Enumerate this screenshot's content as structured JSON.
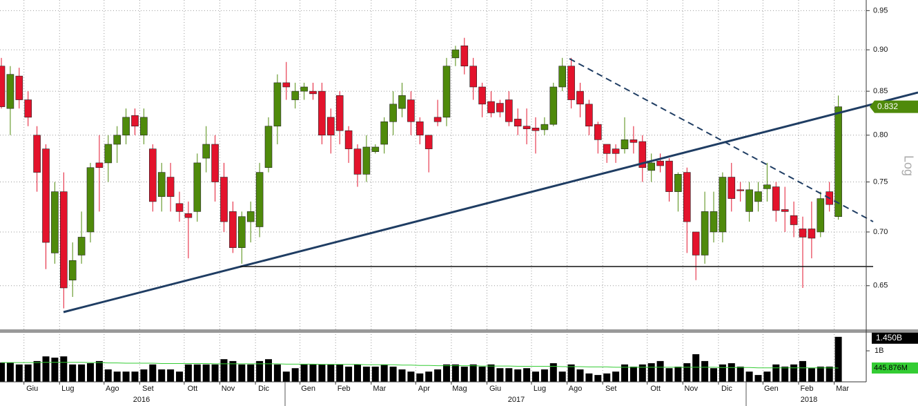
{
  "chart_data": {
    "type": "candlestick",
    "log": true,
    "grid": true,
    "axis_label": "Log",
    "colors": {
      "up": "#4f8a0b",
      "down": "#e3132c",
      "volume": "#000000",
      "ma": "#33cc33"
    },
    "categories": [
      null,
      null,
      null,
      "Giu",
      null,
      null,
      null,
      "Lug",
      null,
      null,
      null,
      null,
      "Ago",
      null,
      null,
      null,
      "Set",
      null,
      null,
      null,
      null,
      "Ott",
      null,
      null,
      null,
      "Nov",
      null,
      null,
      null,
      "Dic",
      null,
      null,
      null,
      null,
      "Gen",
      null,
      null,
      null,
      "Feb",
      null,
      null,
      null,
      "Mar",
      null,
      null,
      null,
      null,
      "Apr",
      null,
      null,
      null,
      "Mag",
      null,
      null,
      null,
      "Giu",
      null,
      null,
      null,
      null,
      "Lug",
      null,
      null,
      null,
      "Ago",
      null,
      null,
      null,
      "Set",
      null,
      null,
      null,
      null,
      "Ott",
      null,
      null,
      null,
      "Nov",
      null,
      null,
      null,
      "Dic",
      null,
      null,
      null,
      null,
      "Gen",
      null,
      null,
      null,
      "Feb",
      null,
      null,
      null,
      "Mar"
    ],
    "years": [
      "2016",
      "2017",
      "2018"
    ],
    "open": [
      0.88,
      0.83,
      0.868,
      0.84,
      0.8,
      0.785,
      0.68,
      0.74,
      0.655,
      0.678,
      0.7,
      0.77,
      0.77,
      0.79,
      0.8,
      0.822,
      0.8,
      0.785,
      0.735,
      0.755,
      0.728,
      0.718,
      0.72,
      0.775,
      0.79,
      0.755,
      0.72,
      0.685,
      0.71,
      0.705,
      0.765,
      0.81,
      0.86,
      0.84,
      0.85,
      0.85,
      0.85,
      0.82,
      0.845,
      0.805,
      0.785,
      0.758,
      0.782,
      0.79,
      0.815,
      0.83,
      0.84,
      0.815,
      0.8,
      0.82,
      0.82,
      0.89,
      0.905,
      0.88,
      0.855,
      0.838,
      0.836,
      0.84,
      0.818,
      0.81,
      0.808,
      0.806,
      0.812,
      0.855,
      0.88,
      0.85,
      0.835,
      0.812,
      0.79,
      0.785,
      0.785,
      0.795,
      0.793,
      0.762,
      0.772,
      0.772,
      0.74,
      0.76,
      0.7,
      0.678,
      0.7,
      0.7,
      0.755,
      0.742,
      0.72,
      0.73,
      0.743,
      0.745,
      0.722,
      0.716,
      0.703,
      0.703,
      0.7,
      0.74,
      0.715
    ],
    "high": [
      0.89,
      0.88,
      0.878,
      0.85,
      0.81,
      0.79,
      0.75,
      0.76,
      0.69,
      0.72,
      0.77,
      0.8,
      0.8,
      0.81,
      0.83,
      0.83,
      0.83,
      0.79,
      0.77,
      0.77,
      0.74,
      0.73,
      0.78,
      0.81,
      0.8,
      0.77,
      0.73,
      0.72,
      0.73,
      0.77,
      0.82,
      0.87,
      0.885,
      0.86,
      0.86,
      0.86,
      0.86,
      0.83,
      0.85,
      0.81,
      0.79,
      0.8,
      0.79,
      0.82,
      0.85,
      0.86,
      0.85,
      0.82,
      0.8,
      0.84,
      0.89,
      0.905,
      0.915,
      0.89,
      0.86,
      0.85,
      0.84,
      0.85,
      0.83,
      0.83,
      0.82,
      0.82,
      0.86,
      0.89,
      0.89,
      0.86,
      0.84,
      0.815,
      0.79,
      0.79,
      0.82,
      0.81,
      0.8,
      0.78,
      0.78,
      0.775,
      0.76,
      0.765,
      0.7,
      0.74,
      0.74,
      0.76,
      0.77,
      0.75,
      0.75,
      0.75,
      0.77,
      0.75,
      0.745,
      0.73,
      0.715,
      0.73,
      0.74,
      0.75,
      0.845
    ],
    "low": [
      0.83,
      0.8,
      0.83,
      0.81,
      0.74,
      0.665,
      0.67,
      0.63,
      0.64,
      0.67,
      0.69,
      0.72,
      0.75,
      0.77,
      0.79,
      0.8,
      0.79,
      0.72,
      0.72,
      0.72,
      0.71,
      0.675,
      0.71,
      0.76,
      0.73,
      0.7,
      0.68,
      0.67,
      0.69,
      0.695,
      0.76,
      0.79,
      0.84,
      0.83,
      0.84,
      0.84,
      0.79,
      0.78,
      0.79,
      0.77,
      0.745,
      0.75,
      0.78,
      0.78,
      0.8,
      0.82,
      0.8,
      0.79,
      0.76,
      0.81,
      0.81,
      0.88,
      0.87,
      0.84,
      0.82,
      0.82,
      0.82,
      0.81,
      0.8,
      0.79,
      0.78,
      0.8,
      0.81,
      0.85,
      0.83,
      0.82,
      0.8,
      0.78,
      0.77,
      0.77,
      0.78,
      0.78,
      0.75,
      0.75,
      0.76,
      0.73,
      0.72,
      0.68,
      0.655,
      0.67,
      0.69,
      0.69,
      0.72,
      0.73,
      0.71,
      0.72,
      0.73,
      0.71,
      0.7,
      0.695,
      0.648,
      0.675,
      0.695,
      0.72,
      0.712
    ],
    "close": [
      0.832,
      0.87,
      0.84,
      0.82,
      0.76,
      0.69,
      0.74,
      0.648,
      0.673,
      0.695,
      0.765,
      0.765,
      0.79,
      0.8,
      0.82,
      0.81,
      0.82,
      0.73,
      0.76,
      0.735,
      0.72,
      0.714,
      0.77,
      0.79,
      0.75,
      0.71,
      0.685,
      0.715,
      0.72,
      0.76,
      0.81,
      0.86,
      0.855,
      0.85,
      0.855,
      0.847,
      0.8,
      0.8,
      0.805,
      0.785,
      0.758,
      0.787,
      0.787,
      0.815,
      0.835,
      0.845,
      0.815,
      0.8,
      0.785,
      0.815,
      0.88,
      0.9,
      0.88,
      0.855,
      0.835,
      0.825,
      0.826,
      0.815,
      0.81,
      0.807,
      0.805,
      0.812,
      0.855,
      0.88,
      0.84,
      0.835,
      0.81,
      0.795,
      0.78,
      0.78,
      0.795,
      0.792,
      0.765,
      0.77,
      0.767,
      0.74,
      0.758,
      0.71,
      0.678,
      0.72,
      0.72,
      0.755,
      0.733,
      0.741,
      0.742,
      0.74,
      0.747,
      0.721,
      0.72,
      0.707,
      0.695,
      0.694,
      0.733,
      0.727,
      0.832
    ],
    "last_label": "0.832",
    "ylim": [
      0.612,
      0.964
    ],
    "yticks": [
      0.65,
      {
        "value": 0.7,
        "label": "0.70"
      },
      0.75,
      {
        "value": 0.8,
        "label": "0.80"
      },
      0.85,
      {
        "value": 0.9,
        "label": "0.90"
      },
      0.95
    ],
    "volume": {
      "values": [
        0.62,
        0.62,
        0.56,
        0.56,
        0.67,
        0.82,
        0.78,
        0.82,
        0.56,
        0.56,
        0.6,
        0.67,
        0.4,
        0.33,
        0.33,
        0.33,
        0.4,
        0.56,
        0.4,
        0.4,
        0.33,
        0.56,
        0.56,
        0.56,
        0.56,
        0.73,
        0.67,
        0.56,
        0.56,
        0.67,
        0.73,
        0.56,
        0.33,
        0.44,
        0.56,
        0.56,
        0.56,
        0.56,
        0.56,
        0.49,
        0.56,
        0.49,
        0.49,
        0.56,
        0.49,
        0.4,
        0.33,
        0.27,
        0.33,
        0.4,
        0.56,
        0.56,
        0.49,
        0.56,
        0.49,
        0.56,
        0.44,
        0.44,
        0.4,
        0.44,
        0.33,
        0.4,
        0.6,
        0.33,
        0.56,
        0.4,
        0.27,
        0.22,
        0.27,
        0.33,
        0.56,
        0.49,
        0.56,
        0.6,
        0.67,
        0.44,
        0.49,
        0.6,
        0.89,
        0.67,
        0.44,
        0.56,
        0.6,
        0.49,
        0.33,
        0.22,
        0.33,
        0.56,
        0.49,
        0.56,
        0.67,
        0.44,
        0.49,
        0.49,
        1.45
      ],
      "ma": [
        0.62,
        0.62,
        0.62,
        0.62,
        0.62,
        0.63,
        0.63,
        0.63,
        0.63,
        0.63,
        0.62,
        0.62,
        0.61,
        0.61,
        0.6,
        0.6,
        0.6,
        0.6,
        0.59,
        0.59,
        0.59,
        0.59,
        0.59,
        0.59,
        0.58,
        0.58,
        0.58,
        0.58,
        0.58,
        0.58,
        0.58,
        0.58,
        0.57,
        0.57,
        0.57,
        0.57,
        0.56,
        0.56,
        0.56,
        0.56,
        0.56,
        0.55,
        0.55,
        0.55,
        0.55,
        0.54,
        0.54,
        0.53,
        0.53,
        0.52,
        0.52,
        0.52,
        0.52,
        0.52,
        0.51,
        0.51,
        0.51,
        0.51,
        0.5,
        0.5,
        0.5,
        0.5,
        0.5,
        0.49,
        0.49,
        0.49,
        0.48,
        0.48,
        0.48,
        0.47,
        0.47,
        0.47,
        0.47,
        0.47,
        0.47,
        0.47,
        0.47,
        0.47,
        0.47,
        0.47,
        0.47,
        0.46,
        0.46,
        0.46,
        0.46,
        0.45,
        0.45,
        0.45,
        0.45,
        0.45,
        0.45,
        0.45,
        0.45,
        0.45,
        0.445876
      ],
      "volume_label": "1.450B",
      "ma_label": "445.876M",
      "ylim": [
        0,
        1.58
      ],
      "yticks": [
        {
          "value": 1,
          "label": "1B"
        }
      ]
    }
  }
}
